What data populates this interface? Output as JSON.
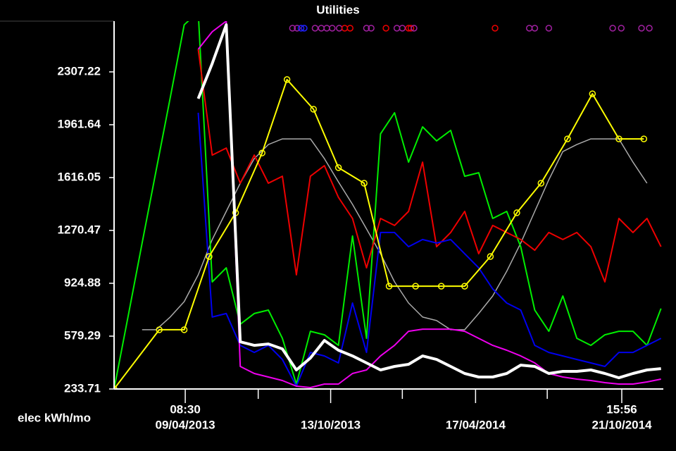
{
  "chart_data": {
    "type": "line",
    "title": "Utilities",
    "ylabel": "elec kWh/mo",
    "ylim": [
      233.71,
      2639
    ],
    "yticks": [
      233.71,
      579.29,
      924.88,
      1270.47,
      1616.05,
      1961.64,
      2307.22
    ],
    "xlim": [
      "2013-01-08",
      "2014-12-14"
    ],
    "xticks": [
      {
        "value": "2013-04-09T08:30",
        "label": [
          "08:30",
          "09/04/2013"
        ]
      },
      {
        "value": "2013-10-13",
        "label": [
          "13/10/2013"
        ]
      },
      {
        "value": "2014-04-17",
        "label": [
          "17/04/2014"
        ]
      },
      {
        "value": "2014-10-21T15:56",
        "label": [
          "15:56",
          "21/10/2014"
        ]
      }
    ],
    "xminorticks": [
      "2013-07-12",
      "2014-01-13",
      "2014-07-18"
    ],
    "x": [
      "2013-01-08",
      "2013-01-26",
      "2013-02-13",
      "2013-03-03",
      "2013-03-21",
      "2013-04-08",
      "2013-04-26",
      "2013-05-14",
      "2013-06-01",
      "2013-06-19",
      "2013-07-07",
      "2013-07-25",
      "2013-08-12",
      "2013-08-30",
      "2013-09-17",
      "2013-10-05",
      "2013-10-23",
      "2013-11-10",
      "2013-11-28",
      "2013-12-16",
      "2014-01-03",
      "2014-01-21",
      "2014-02-08",
      "2014-02-26",
      "2014-03-16",
      "2014-04-03",
      "2014-04-21",
      "2014-05-09",
      "2014-05-27",
      "2014-06-14",
      "2014-07-02",
      "2014-07-20",
      "2014-08-07",
      "2014-08-25",
      "2014-09-12",
      "2014-09-30",
      "2014-10-18",
      "2014-11-05",
      "2014-11-23",
      "2014-12-11"
    ],
    "series": [
      {
        "color": "#aaaaaa",
        "width": 1.5,
        "values": [
          null,
          null,
          621,
          621,
          704,
          805,
          980,
          1211,
          1395,
          1579,
          1740,
          1832,
          1869,
          1869,
          1869,
          1740,
          1588,
          1441,
          1280,
          1118,
          934,
          796,
          704,
          681,
          621,
          621,
          727,
          842,
          1003,
          1188,
          1395,
          1602,
          1786,
          1832,
          1869,
          1869,
          1869,
          1717,
          1579,
          null
        ]
      },
      {
        "color": "#00ee00",
        "width": 2,
        "values": [
          233.71,
          708,
          1187,
          1662,
          2137,
          2615,
          2700,
          934,
          1026,
          657,
          727,
          750,
          565,
          266,
          611,
          588,
          519,
          1234,
          565,
          1902,
          2040,
          1717,
          1948,
          1856,
          1925,
          1625,
          1648,
          1349,
          1395,
          1164,
          750,
          611,
          842,
          565,
          519,
          588,
          611,
          611,
          519,
          760
        ]
      },
      {
        "color": "#ee0000",
        "width": 2,
        "values": [
          null,
          null,
          null,
          null,
          null,
          null,
          2455,
          1763,
          1809,
          1579,
          1763,
          1579,
          1625,
          980,
          1625,
          1694,
          1487,
          1349,
          1026,
          1349,
          1303,
          1395,
          1717,
          1164,
          1257,
          1395,
          1118,
          1303,
          1257,
          1211,
          1141,
          1257,
          1211,
          1257,
          1164,
          934,
          1349,
          1257,
          1349,
          1164
        ]
      },
      {
        "color": "#0000ee",
        "width": 2,
        "values": [
          null,
          null,
          null,
          null,
          null,
          null,
          2040,
          704,
          727,
          519,
          473,
          519,
          427,
          252,
          473,
          450,
          404,
          796,
          473,
          1257,
          1257,
          1164,
          1211,
          1188,
          1211,
          1118,
          1026,
          888,
          796,
          750,
          519,
          473,
          450,
          427,
          404,
          381,
          473,
          473,
          519,
          565
        ]
      },
      {
        "color": "#ee00ee",
        "width": 2,
        "values": [
          null,
          null,
          null,
          null,
          null,
          null,
          2455,
          2570,
          2639,
          381,
          335,
          312,
          289,
          252,
          243,
          266,
          266,
          335,
          358,
          450,
          519,
          611,
          625,
          625,
          625,
          611,
          565,
          519,
          487,
          450,
          404,
          335,
          312,
          298,
          289,
          275,
          266,
          266,
          280,
          298
        ]
      },
      {
        "color": "#ffff00",
        "width": 2,
        "markers": true,
        "x": [
          "2013-01-08",
          "2013-03-07",
          "2013-04-08",
          "2013-05-10",
          "2013-06-13",
          "2013-07-17",
          "2013-08-18",
          "2013-09-21",
          "2013-10-23",
          "2013-11-25",
          "2013-12-27",
          "2014-01-30",
          "2014-03-04",
          "2014-04-03",
          "2014-05-06",
          "2014-06-09",
          "2014-07-10",
          "2014-08-13",
          "2014-09-14",
          "2014-10-18",
          "2014-11-19"
        ],
        "values": [
          233.71,
          621,
          621,
          1100,
          1386,
          1777,
          2257,
          2063,
          1681,
          1579,
          906,
          906,
          906,
          906,
          1100,
          1386,
          1579,
          1869,
          2164,
          1869,
          1869
        ]
      },
      {
        "color": "#ffffff",
        "width": 4,
        "values": [
          null,
          null,
          null,
          null,
          null,
          null,
          2132,
          2362,
          2616,
          542,
          519,
          528,
          496,
          358,
          436,
          551,
          487,
          450,
          404,
          358,
          381,
          395,
          450,
          427,
          381,
          335,
          312,
          312,
          335,
          390,
          381,
          335,
          349,
          349,
          358,
          335,
          307,
          335,
          358,
          367
        ]
      }
    ],
    "events": [
      {
        "x": "2013-08-25",
        "color": "#a020a0"
      },
      {
        "x": "2013-08-31",
        "color": "#a020a0"
      },
      {
        "x": "2013-09-05",
        "color": "#2020ff"
      },
      {
        "x": "2013-09-09",
        "color": "#2020ff"
      },
      {
        "x": "2013-09-23",
        "color": "#a020a0"
      },
      {
        "x": "2013-10-01",
        "color": "#a020a0"
      },
      {
        "x": "2013-10-08",
        "color": "#a020a0"
      },
      {
        "x": "2013-10-15",
        "color": "#a020a0"
      },
      {
        "x": "2013-10-24",
        "color": "#a020a0"
      },
      {
        "x": "2013-10-31",
        "color": "#ee0000"
      },
      {
        "x": "2013-11-07",
        "color": "#ee0000"
      },
      {
        "x": "2013-11-28",
        "color": "#a020a0"
      },
      {
        "x": "2013-12-04",
        "color": "#a020a0"
      },
      {
        "x": "2013-12-23",
        "color": "#ee0000"
      },
      {
        "x": "2014-01-06",
        "color": "#a020a0"
      },
      {
        "x": "2014-01-13",
        "color": "#a020a0"
      },
      {
        "x": "2014-01-21",
        "color": "#ee0000"
      },
      {
        "x": "2014-01-24",
        "color": "#ee0000"
      },
      {
        "x": "2014-01-28",
        "color": "#a020a0"
      },
      {
        "x": "2014-05-12",
        "color": "#ee0000"
      },
      {
        "x": "2014-06-25",
        "color": "#a020a0"
      },
      {
        "x": "2014-07-02",
        "color": "#a020a0"
      },
      {
        "x": "2014-07-20",
        "color": "#a020a0"
      },
      {
        "x": "2014-10-10",
        "color": "#a020a0"
      },
      {
        "x": "2014-10-21",
        "color": "#a020a0"
      },
      {
        "x": "2014-11-16",
        "color": "#a020a0"
      },
      {
        "x": "2014-11-26",
        "color": "#a020a0"
      }
    ]
  }
}
